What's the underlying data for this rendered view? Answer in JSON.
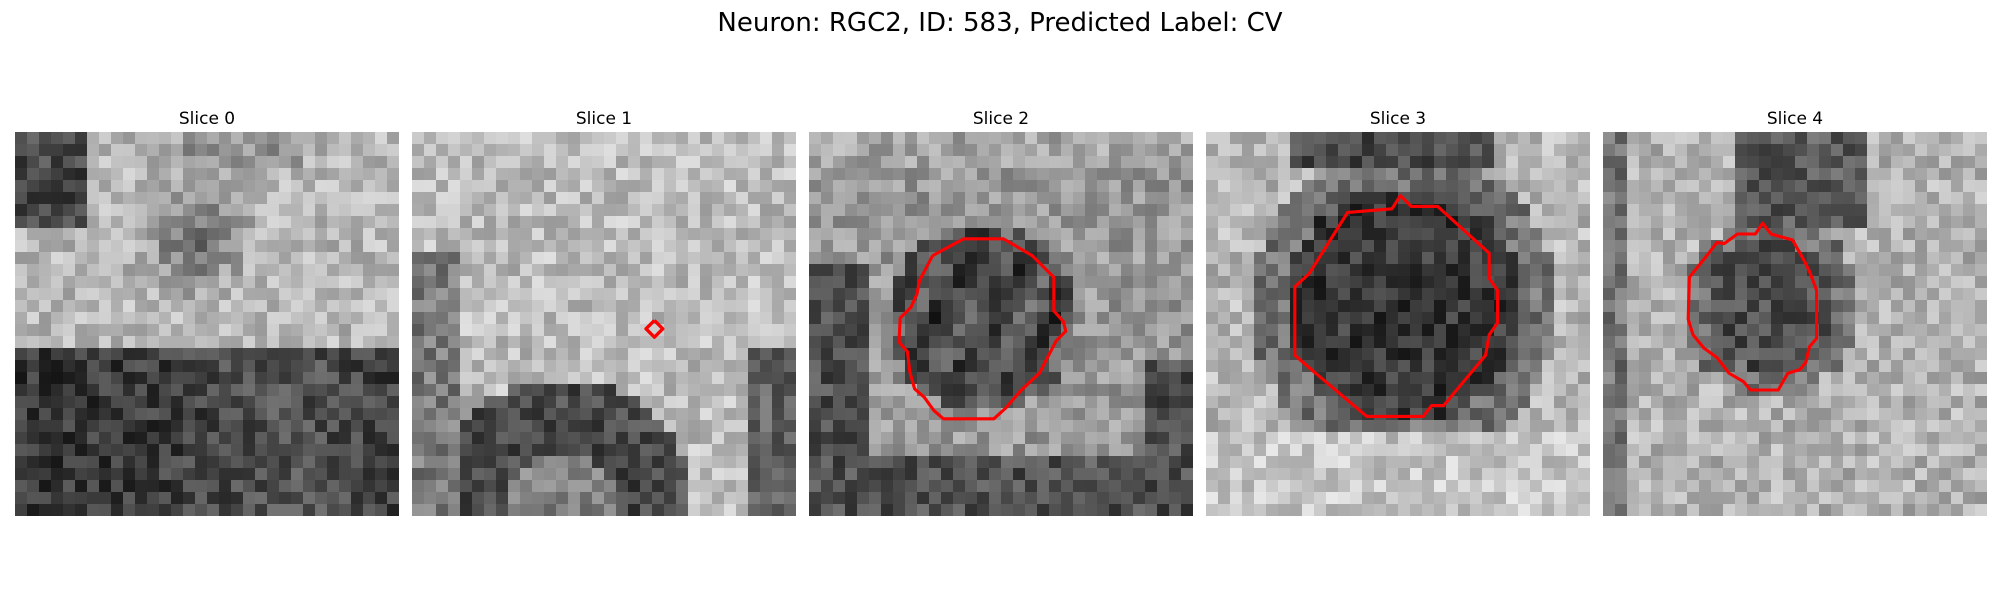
{
  "figure": {
    "title": "Neuron: RGC2, ID: 583, Predicted Label: CV"
  },
  "colors": {
    "contour": "#ff0000",
    "background": "#ffffff"
  },
  "panels": [
    {
      "title": "Slice 0",
      "has_contour": false
    },
    {
      "title": "Slice 1",
      "has_contour": true
    },
    {
      "title": "Slice 2",
      "has_contour": true
    },
    {
      "title": "Slice 3",
      "has_contour": true
    },
    {
      "title": "Slice 4",
      "has_contour": true
    }
  ]
}
